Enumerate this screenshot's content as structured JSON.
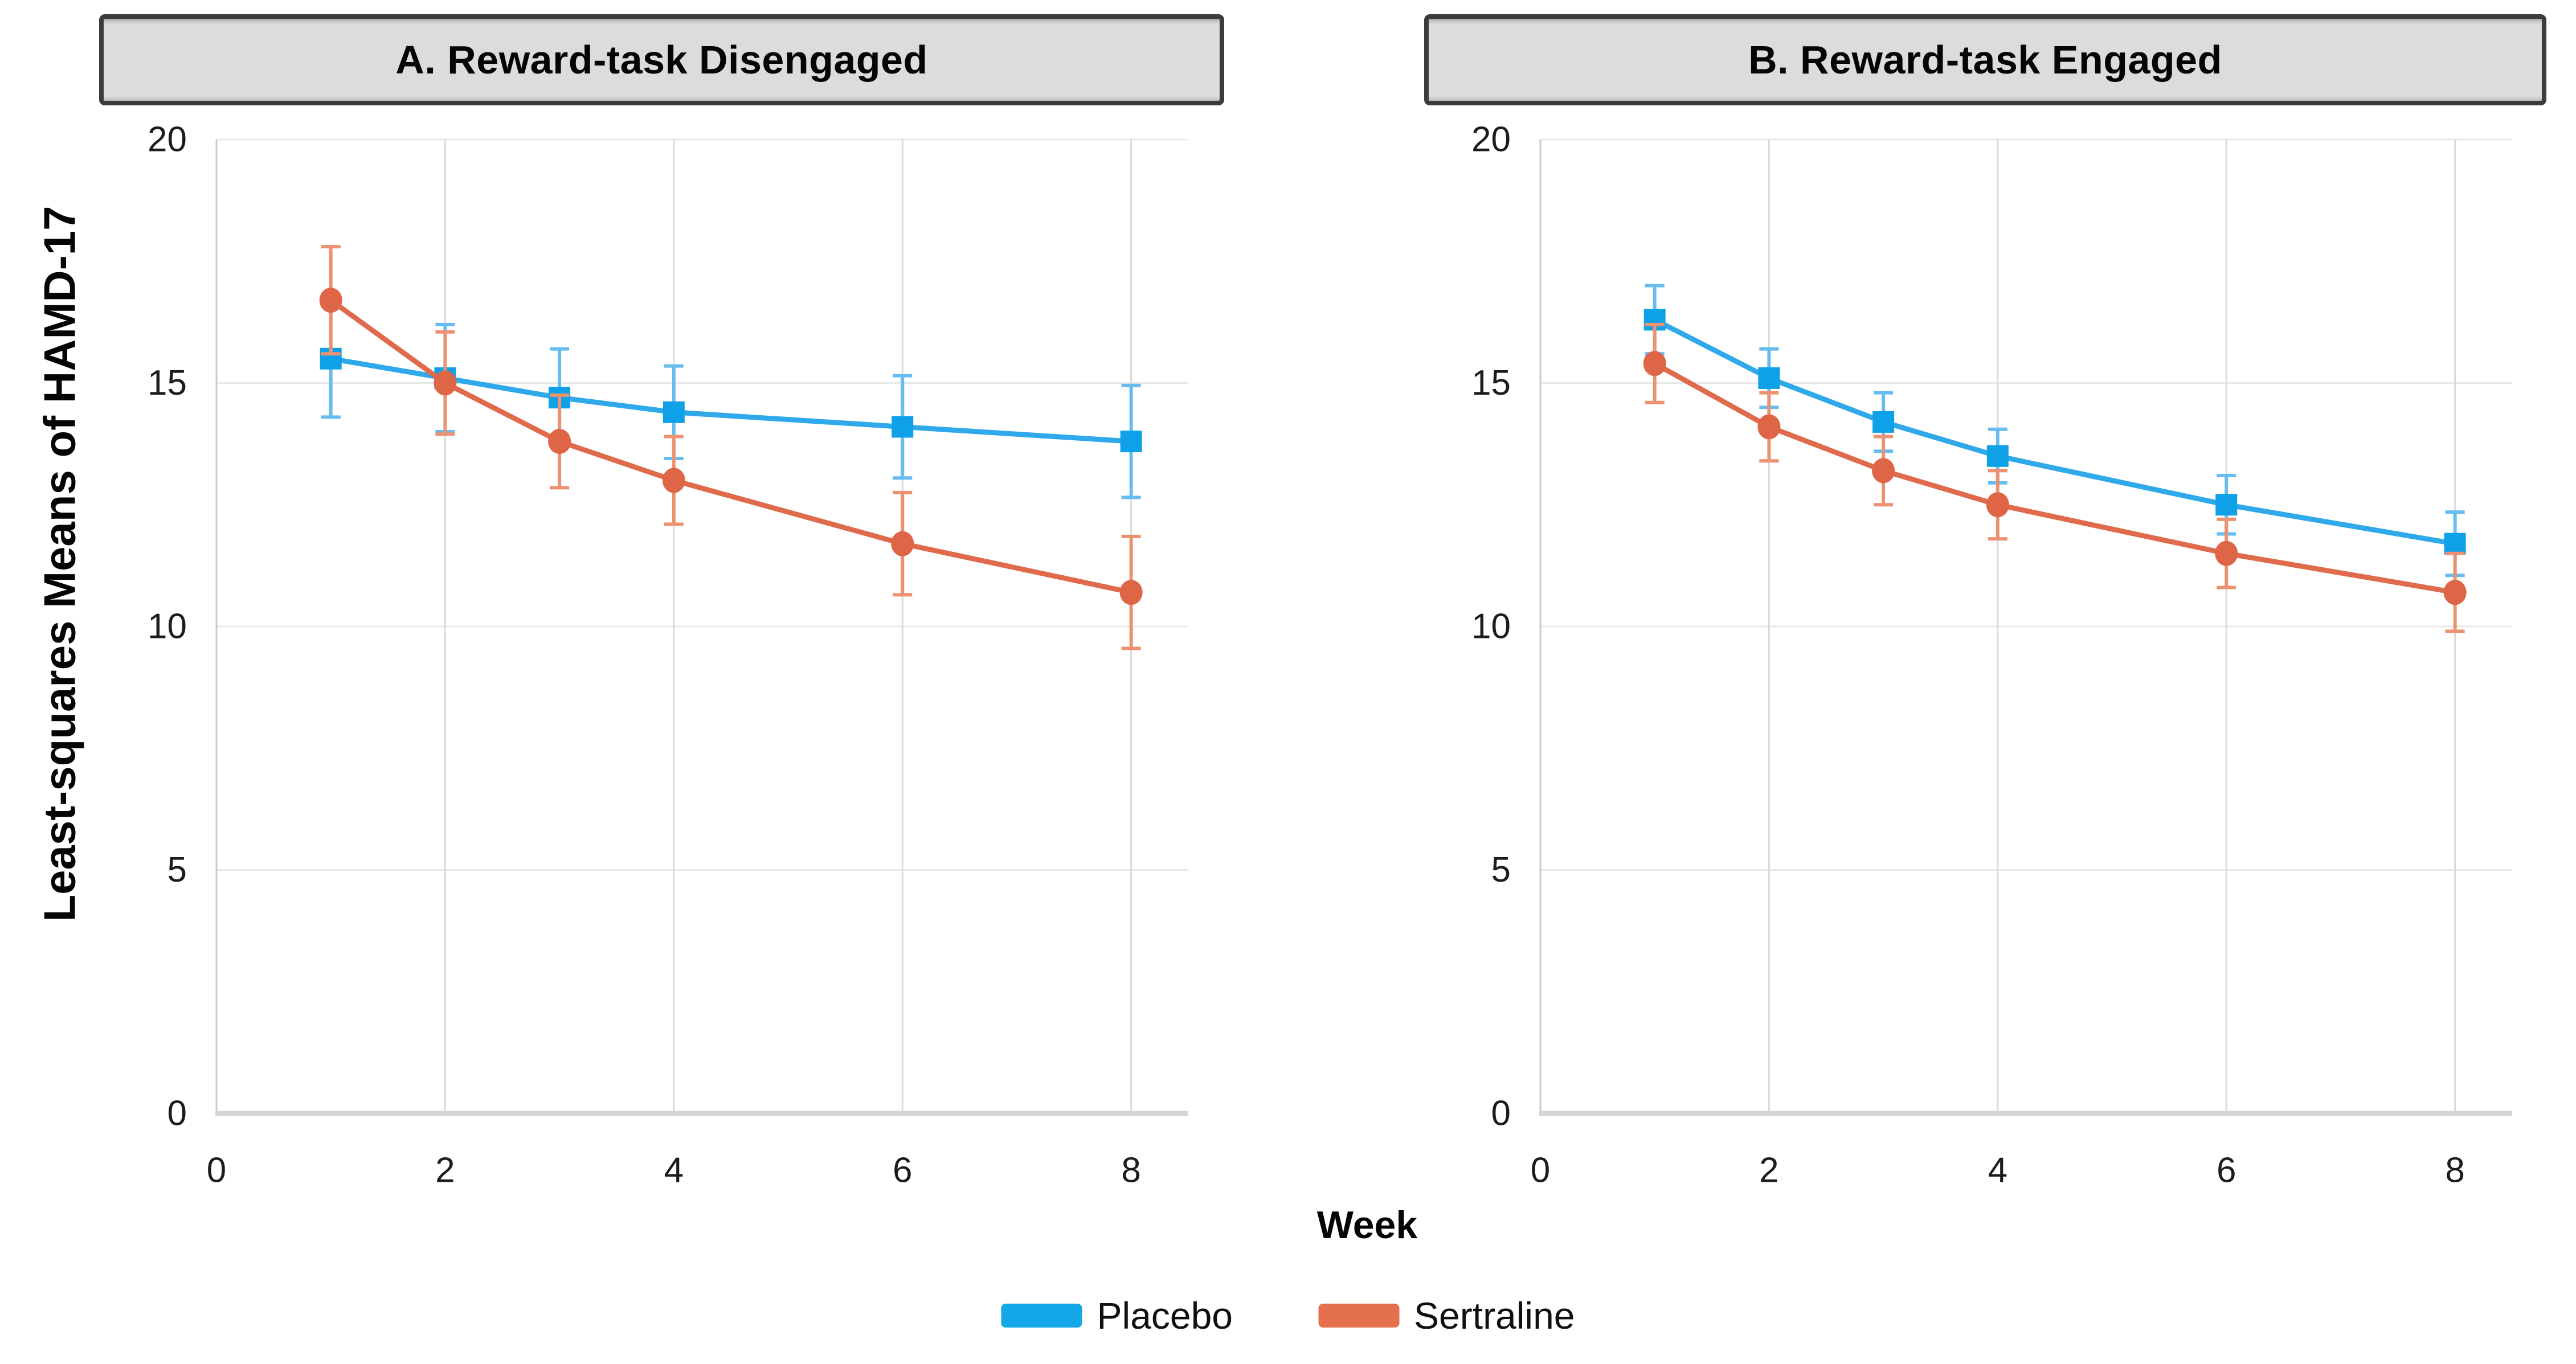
{
  "figure": {
    "y_axis_label": "Least-squares Means of HAMD-17",
    "x_axis_label": "Week",
    "legend": [
      {
        "label": "Placebo",
        "color_key": "placebo_legend"
      },
      {
        "label": "Sertraline",
        "color_key": "sertraline_legend"
      }
    ],
    "colors": {
      "placebo_line": "#2fa9ea",
      "placebo_marker": "#0fa1e7",
      "placebo_error": "#68bdf0",
      "placebo_legend": "#14a8e9",
      "sertraline_line": "#e06b4c",
      "sertraline_marker": "#de6546",
      "sertraline_error": "#ec9271",
      "sertraline_legend": "#e4704e",
      "grid_h": "#e9e9e9",
      "grid_v": "#dbdbdb",
      "y_axis_line": "#c9c9c9",
      "x_axis_line": "#d6d6d6",
      "tick_text": "#1c1c1c",
      "title_fill": "#dcdcdc",
      "title_border": "#3c3c3c"
    }
  },
  "chart_data": [
    {
      "type": "line",
      "title": "A. Reward-task Disengaged",
      "xlabel": "Week",
      "ylabel": "Least-squares Means of HAMD-17",
      "x": [
        1,
        2,
        3,
        4,
        6,
        8
      ],
      "xticks": [
        0,
        2,
        4,
        6,
        8
      ],
      "yticks": [
        0,
        5,
        10,
        15,
        20
      ],
      "xlim": [
        0,
        8.5
      ],
      "ylim": [
        0,
        20
      ],
      "grid": true,
      "legend_position": "bottom",
      "series": [
        {
          "name": "Placebo",
          "marker": "square",
          "values": [
            15.5,
            15.1,
            14.7,
            14.4,
            14.1,
            13.8
          ],
          "errors": [
            1.2,
            1.1,
            1.0,
            0.95,
            1.05,
            1.15
          ]
        },
        {
          "name": "Sertraline",
          "marker": "circle",
          "values": [
            16.7,
            15.0,
            13.8,
            13.0,
            11.7,
            10.7
          ],
          "errors": [
            1.1,
            1.05,
            0.95,
            0.9,
            1.05,
            1.15
          ]
        }
      ]
    },
    {
      "type": "line",
      "title": "B. Reward-task Engaged",
      "xlabel": "Week",
      "ylabel": "Least-squares Means of HAMD-17",
      "x": [
        1,
        2,
        3,
        4,
        6,
        8
      ],
      "xticks": [
        0,
        2,
        4,
        6,
        8
      ],
      "yticks": [
        0,
        5,
        10,
        15,
        20
      ],
      "xlim": [
        0,
        8.5
      ],
      "ylim": [
        0,
        20
      ],
      "grid": true,
      "legend_position": "bottom",
      "series": [
        {
          "name": "Placebo",
          "marker": "square",
          "values": [
            16.3,
            15.1,
            14.2,
            13.5,
            12.5,
            11.7
          ],
          "errors": [
            0.7,
            0.6,
            0.6,
            0.55,
            0.6,
            0.65
          ]
        },
        {
          "name": "Sertraline",
          "marker": "circle",
          "values": [
            15.4,
            14.1,
            13.2,
            12.5,
            11.5,
            10.7
          ],
          "errors": [
            0.8,
            0.7,
            0.7,
            0.7,
            0.7,
            0.8
          ]
        }
      ]
    }
  ]
}
